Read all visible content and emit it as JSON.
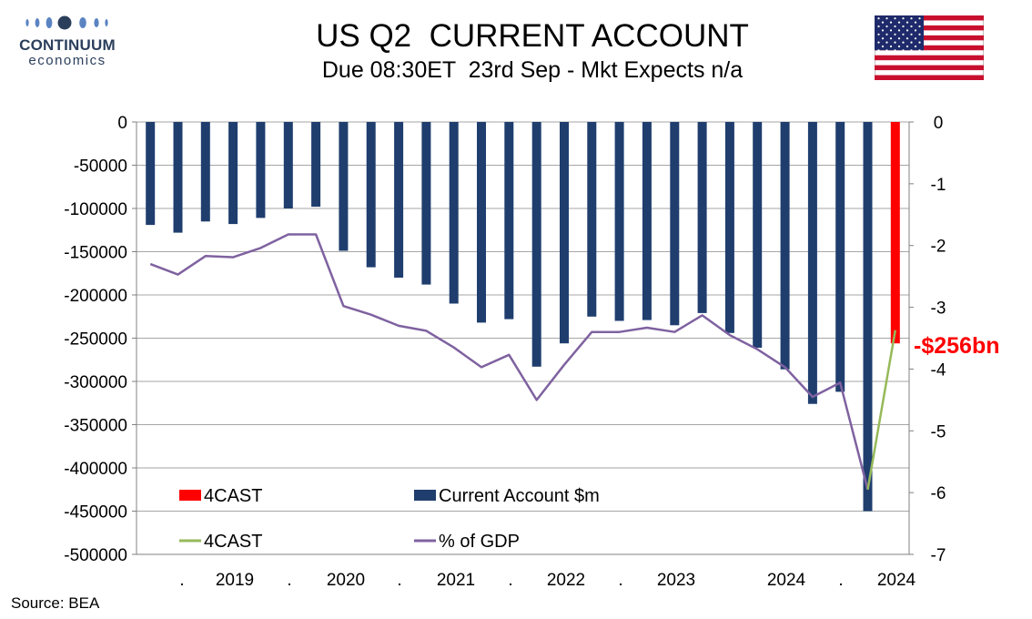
{
  "logo": {
    "main": "CONTINUUM",
    "sub": "economics"
  },
  "header": {
    "title": "US Q2  CURRENT ACCOUNT",
    "subtitle": "Due 08:30ET  23rd Sep - Mkt Expects n/a"
  },
  "flag_icon": "us-flag-icon",
  "colors": {
    "current_account": "#1f3e6e",
    "forecast_bar": "#ff0000",
    "gdp_line": "#7f62a0",
    "forecast_line": "#96b95a",
    "gridline": "#a6a6a6"
  },
  "source": "Source: BEA",
  "chart_data": {
    "type": "bar",
    "title": "US Q2  CURRENT ACCOUNT",
    "x_tick_labels": [
      ".",
      "2019",
      ".",
      "2020",
      ".",
      "2021",
      ".",
      "2022",
      ".",
      "2023",
      "",
      "2024",
      ".",
      "2024"
    ],
    "y_left": {
      "lim": [
        -500000,
        0
      ],
      "ticks": [
        "0",
        "-50000",
        "-100000",
        "-150000",
        "-200000",
        "-250000",
        "-300000",
        "-350000",
        "-400000",
        "-450000",
        "-500000"
      ]
    },
    "y_right": {
      "lim": [
        -7,
        0
      ],
      "ticks": [
        "0",
        "-1",
        "-2",
        "-3",
        "-4",
        "-5",
        "-6",
        "-7"
      ]
    },
    "grid": true,
    "legend_position": "bottom-left inside plot",
    "series": [
      {
        "name": "Current Account $m",
        "type": "bar",
        "axis": "left",
        "values": [
          -119000,
          -128000,
          -115000,
          -118000,
          -111000,
          -100000,
          -98000,
          -149000,
          -168000,
          -180000,
          -188000,
          -210000,
          -232000,
          -228000,
          -283000,
          -256000,
          -225000,
          -230000,
          -229000,
          -235000,
          -221000,
          -244000,
          -261000,
          -286000,
          -326000,
          -312000,
          -450000
        ]
      },
      {
        "name": "4CAST",
        "type": "bar",
        "axis": "left",
        "index": 27,
        "values": [
          -256000
        ]
      },
      {
        "name": "% of GDP",
        "type": "line",
        "axis": "right",
        "values": [
          -2.3,
          -2.47,
          -2.17,
          -2.19,
          -2.04,
          -1.82,
          -1.82,
          -2.98,
          -3.12,
          -3.3,
          -3.38,
          -3.65,
          -3.97,
          -3.77,
          -4.5,
          -3.93,
          -3.4,
          -3.4,
          -3.33,
          -3.4,
          -3.13,
          -3.45,
          -3.68,
          -3.97,
          -4.45,
          -4.22,
          -5.95
        ]
      },
      {
        "name": "4CAST",
        "type": "line",
        "axis": "right",
        "x_index": [
          26,
          27
        ],
        "values": [
          -5.95,
          -3.37
        ]
      }
    ],
    "annotations": [
      {
        "text": "-$256bn",
        "color": "#ff0000"
      }
    ]
  }
}
